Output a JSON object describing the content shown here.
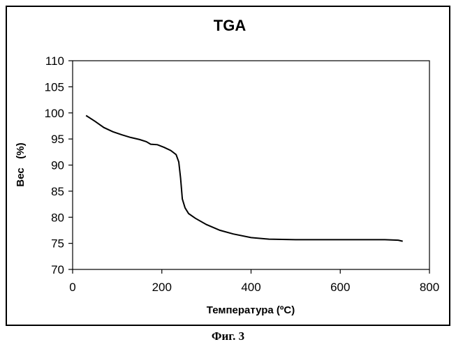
{
  "chart_data": {
    "type": "line",
    "title": "TGA",
    "xlabel": "Температура (ºC)",
    "ylabel": "Вес   (%)",
    "xlim": [
      0,
      800
    ],
    "ylim": [
      70,
      110
    ],
    "x_ticks": [
      0,
      200,
      400,
      600,
      800
    ],
    "y_ticks": [
      70,
      75,
      80,
      85,
      90,
      95,
      100,
      105,
      110
    ],
    "grid": false,
    "series": [
      {
        "x": [
          30,
          50,
          70,
          90,
          110,
          130,
          150,
          165,
          175,
          190,
          205,
          220,
          232,
          238,
          242,
          246,
          252,
          260,
          275,
          300,
          330,
          360,
          400,
          440,
          500,
          600,
          700,
          730,
          740
        ],
        "values": [
          99.5,
          98.4,
          97.2,
          96.4,
          95.8,
          95.3,
          94.9,
          94.5,
          94.0,
          93.9,
          93.4,
          92.8,
          92.0,
          90.6,
          87.5,
          83.5,
          81.8,
          80.7,
          79.8,
          78.6,
          77.5,
          76.8,
          76.1,
          75.8,
          75.7,
          75.7,
          75.7,
          75.6,
          75.4
        ],
        "color": "#000000"
      }
    ]
  },
  "caption": "Фиг. 3"
}
